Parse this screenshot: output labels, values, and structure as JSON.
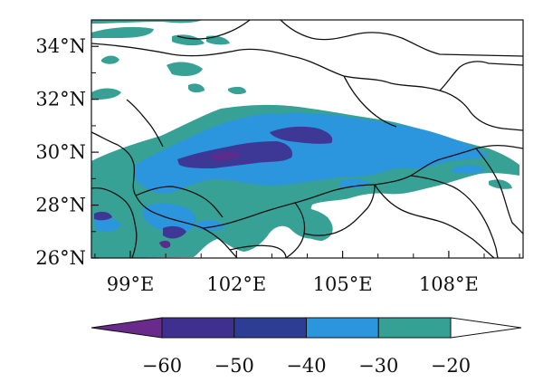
{
  "map": {
    "lat_ticks": [
      "26°N",
      "28°N",
      "30°N",
      "32°N",
      "34°N"
    ],
    "lon_ticks": [
      "99°E",
      "102°E",
      "105°E",
      "108°E"
    ],
    "lat_range": [
      26,
      35
    ],
    "lon_range": [
      97.9,
      110.1
    ]
  },
  "colorbar": {
    "labels": [
      "−60",
      "−50",
      "−40",
      "−30",
      "−20"
    ],
    "levels": [
      -60,
      -50,
      -40,
      -30,
      -20
    ],
    "colors": [
      "#6a2a8c",
      "#3f2f8e",
      "#2c3d93",
      "#2b96dd",
      "#34a194",
      "#ffffff"
    ],
    "extend": "both"
  },
  "field_colors": {
    "teal": "#37a196",
    "blue": "#2b96dd",
    "indigo": "#3d3896",
    "purple": "#5a2c8c"
  }
}
